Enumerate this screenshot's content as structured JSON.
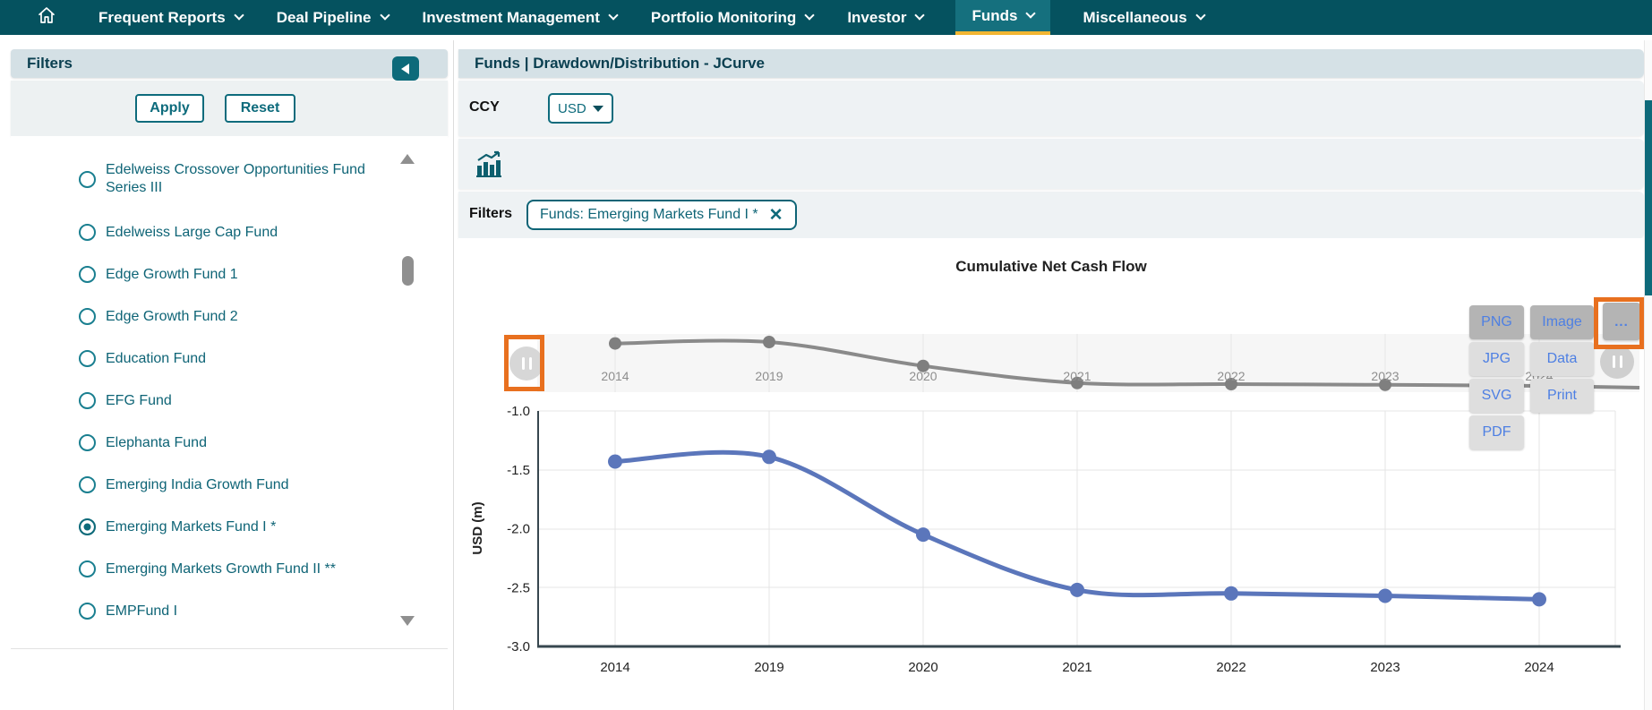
{
  "navbar": {
    "items": [
      {
        "label": "Frequent Reports",
        "active": false
      },
      {
        "label": "Deal Pipeline",
        "active": false
      },
      {
        "label": "Investment Management",
        "active": false
      },
      {
        "label": "Portfolio Monitoring",
        "active": false
      },
      {
        "label": "Investor",
        "active": false
      },
      {
        "label": "Funds",
        "active": true
      },
      {
        "label": "Miscellaneous",
        "active": false
      }
    ]
  },
  "sidebar": {
    "title": "Filters",
    "apply_label": "Apply",
    "reset_label": "Reset",
    "funds": [
      {
        "label": "Edelweiss Crossover Opportunities Fund Series III",
        "selected": false
      },
      {
        "label": "Edelweiss Large Cap Fund",
        "selected": false
      },
      {
        "label": "Edge Growth Fund 1",
        "selected": false
      },
      {
        "label": "Edge Growth Fund 2",
        "selected": false
      },
      {
        "label": "Education Fund",
        "selected": false
      },
      {
        "label": "EFG Fund",
        "selected": false
      },
      {
        "label": "Elephanta Fund",
        "selected": false
      },
      {
        "label": "Emerging India Growth Fund",
        "selected": false
      },
      {
        "label": "Emerging Markets Fund I *",
        "selected": true
      },
      {
        "label": "Emerging Markets Growth Fund II **",
        "selected": false
      },
      {
        "label": "EMPFund I",
        "selected": false
      }
    ]
  },
  "main": {
    "title": "Funds | Drawdown/Distribution - JCurve",
    "ccy_label": "CCY",
    "ccy_value": "USD",
    "filters_label": "Filters",
    "filter_chip": "Funds: Emerging Markets Fund I *"
  },
  "icons": {
    "close_glyph": "✕"
  },
  "export_menu": {
    "col1": [
      "PNG",
      "JPG",
      "SVG",
      "PDF"
    ],
    "col2": [
      "Image",
      "Data",
      "Print"
    ],
    "more_label": "..."
  },
  "chart_data": {
    "type": "line",
    "title": "Cumulative Net Cash Flow",
    "categories": [
      "2014",
      "2019",
      "2020",
      "2021",
      "2022",
      "2023",
      "2024"
    ],
    "series": [
      {
        "name": "Cumulative Net Cash Flow",
        "values": [
          -1.43,
          -1.39,
          -2.05,
          -2.52,
          -2.55,
          -2.57,
          -2.6
        ]
      }
    ],
    "xlabel": "",
    "ylabel": "USD (m)",
    "ylim": [
      -3.0,
      -1.0
    ],
    "yticks": [
      -1.0,
      -1.5,
      -2.0,
      -2.5,
      -3.0
    ],
    "grid": true,
    "legend": "none",
    "line_color": "#5b76bb",
    "navigator": {
      "line_color": "#8a8a8a",
      "dot_color": "#7f7f7f",
      "labels": [
        "2014",
        "2019",
        "2020",
        "2021",
        "2022",
        "2023",
        "2024"
      ]
    }
  },
  "colors": {
    "navbar_bg": "#05525f",
    "active_tab_bg": "#15707e",
    "active_tab_underline": "#f2b632",
    "accent_teal": "#0d6b7c",
    "panel_header_bg": "#d5e1e6",
    "panel_row_bg": "#eef2f4",
    "export_link_blue": "#4d7fe3",
    "annotation_orange": "#e8701f",
    "chart_line_blue": "#5b76bb"
  }
}
